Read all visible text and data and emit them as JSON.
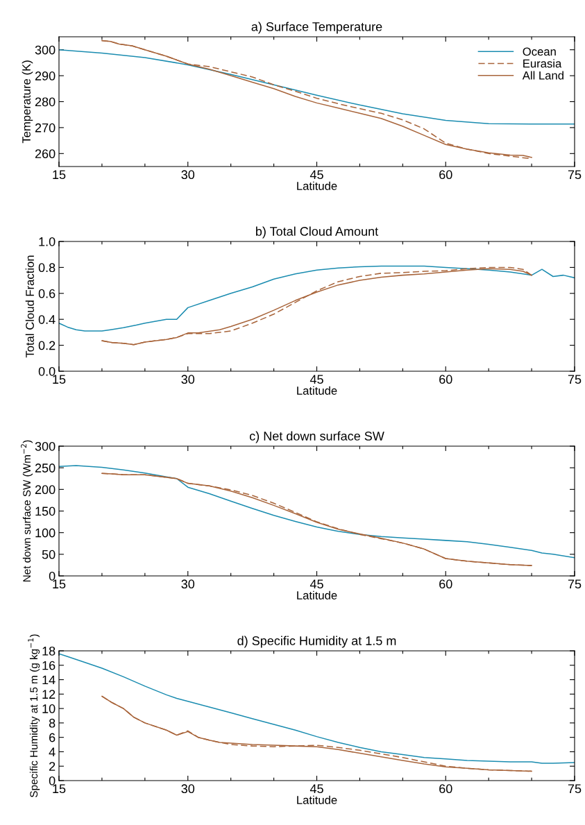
{
  "chart_data": [
    {
      "type": "line",
      "title": "a) Surface Temperature",
      "xlabel": "Latitude",
      "ylabel": "Temperature (K)",
      "xlim": [
        15,
        75
      ],
      "xticks": [
        15,
        {
          "value": 20,
          "label": null
        },
        {
          "value": 25,
          "label": null
        },
        30,
        {
          "value": 35,
          "label": null
        },
        {
          "value": 40,
          "label": null
        },
        45,
        {
          "value": 50,
          "label": null
        },
        {
          "value": 55,
          "label": null
        },
        60,
        {
          "value": 65,
          "label": null
        },
        {
          "value": 70,
          "label": null
        },
        75
      ],
      "ylim": [
        255,
        305
      ],
      "yticks": [
        260,
        270,
        280,
        290,
        300
      ],
      "grid": false,
      "legend": "top right",
      "series": [
        {
          "name": "Ocean",
          "color": "#1a8cb0",
          "line_style": "solid",
          "x": [
            15,
            20,
            25,
            30,
            35,
            40,
            45,
            50,
            55,
            60,
            65,
            70,
            75
          ],
          "values": [
            300,
            298.7,
            297,
            294.2,
            290.5,
            286.5,
            282.5,
            278.7,
            275.3,
            272.8,
            271.5,
            271.4,
            271.4
          ]
        },
        {
          "name": "Eurasia",
          "color": "#a8643a",
          "line_style": "dashed",
          "x": [
            20,
            21,
            22,
            23.5,
            25,
            27.5,
            30,
            32.5,
            35,
            37.5,
            40,
            42.5,
            45,
            47.5,
            50,
            52.5,
            55,
            57.5,
            60,
            62.5,
            65,
            67.5,
            70
          ],
          "values": [
            303.5,
            303.2,
            302.2,
            301.5,
            300,
            297.5,
            294.5,
            293.5,
            291.5,
            289.5,
            286.5,
            284,
            281.3,
            279.2,
            277.3,
            275.5,
            273,
            269.5,
            264,
            261.7,
            260,
            259,
            258
          ]
        },
        {
          "name": "All Land",
          "color": "#a8643a",
          "line_style": "solid",
          "x": [
            20,
            21,
            22,
            23.5,
            25,
            27.5,
            30,
            32.5,
            35,
            37.5,
            40,
            42.5,
            45,
            47.5,
            50,
            52.5,
            55,
            57.5,
            60,
            62.5,
            65,
            67.5,
            69,
            70
          ],
          "values": [
            303.5,
            303.2,
            302.2,
            301.5,
            300,
            297.5,
            294.5,
            292.5,
            290,
            287.5,
            285,
            282,
            279.5,
            277.5,
            275.5,
            273.5,
            270.5,
            267,
            263.5,
            261.7,
            260.3,
            259.4,
            259.3,
            258.5
          ]
        }
      ]
    },
    {
      "type": "line",
      "title": "b) Total Cloud Amount",
      "xlabel": "Latitude",
      "ylabel": "Total Cloud Fraction",
      "xlim": [
        15,
        75
      ],
      "xticks": [
        15,
        {
          "value": 20,
          "label": null
        },
        {
          "value": 25,
          "label": null
        },
        30,
        {
          "value": 35,
          "label": null
        },
        {
          "value": 40,
          "label": null
        },
        45,
        {
          "value": 50,
          "label": null
        },
        {
          "value": 55,
          "label": null
        },
        60,
        {
          "value": 65,
          "label": null
        },
        {
          "value": 70,
          "label": null
        },
        75
      ],
      "ylim": [
        0,
        1
      ],
      "yticks": [
        {
          "value": 0,
          "label": "0.0"
        },
        {
          "value": 0.2,
          "label": "0.2"
        },
        {
          "value": 0.4,
          "label": "0.4"
        },
        {
          "value": 0.6,
          "label": "0.6"
        },
        {
          "value": 0.8,
          "label": "0.8"
        },
        {
          "value": 1,
          "label": "1.0"
        }
      ],
      "grid": false,
      "series": [
        {
          "color": "#1a8cb0",
          "line_style": "solid",
          "x": [
            15,
            16,
            17,
            18,
            20,
            21,
            22.5,
            24,
            25,
            27.5,
            28.7,
            30,
            32.5,
            35,
            37.5,
            40,
            42.5,
            45,
            47.5,
            50,
            52.5,
            55,
            57.5,
            60,
            62.5,
            65,
            67.5,
            70,
            71.2,
            72.5,
            73.7,
            75
          ],
          "values": [
            0.37,
            0.34,
            0.32,
            0.31,
            0.31,
            0.32,
            0.335,
            0.355,
            0.37,
            0.4,
            0.4,
            0.49,
            0.545,
            0.6,
            0.65,
            0.71,
            0.75,
            0.78,
            0.795,
            0.805,
            0.81,
            0.81,
            0.81,
            0.8,
            0.79,
            0.78,
            0.765,
            0.74,
            0.785,
            0.73,
            0.74,
            0.72
          ]
        },
        {
          "color": "#a8643a",
          "line_style": "dashed",
          "x": [
            20,
            21.2,
            22.5,
            23.7,
            25,
            27.5,
            28.7,
            30,
            32.5,
            35,
            37.5,
            40,
            42.5,
            45,
            47.5,
            50,
            52.5,
            55,
            57.5,
            60,
            62.5,
            65,
            67.5,
            69,
            70
          ],
          "values": [
            0.235,
            0.22,
            0.215,
            0.205,
            0.225,
            0.245,
            0.26,
            0.29,
            0.29,
            0.31,
            0.37,
            0.44,
            0.53,
            0.62,
            0.69,
            0.73,
            0.755,
            0.76,
            0.77,
            0.775,
            0.79,
            0.8,
            0.8,
            0.785,
            0.74
          ]
        },
        {
          "color": "#a8643a",
          "line_style": "solid",
          "x": [
            20,
            21.2,
            22.5,
            23.7,
            25,
            27.5,
            28.7,
            30,
            31.2,
            33.7,
            35,
            37.5,
            40,
            42.5,
            45,
            47.5,
            50,
            52.5,
            55,
            57.5,
            60,
            62.5,
            65,
            67.5,
            69,
            70
          ],
          "values": [
            0.235,
            0.22,
            0.215,
            0.205,
            0.225,
            0.245,
            0.26,
            0.295,
            0.295,
            0.32,
            0.345,
            0.4,
            0.47,
            0.545,
            0.61,
            0.665,
            0.7,
            0.725,
            0.74,
            0.75,
            0.765,
            0.78,
            0.79,
            0.785,
            0.77,
            0.74
          ]
        }
      ]
    },
    {
      "type": "line",
      "title": "c) Net down surface SW",
      "xlabel": "Latitude",
      "ylabel": "Net down surface SW (Wm$^{−2}$)",
      "xlim": [
        15,
        75
      ],
      "xticks": [
        15,
        {
          "value": 20,
          "label": null
        },
        {
          "value": 25,
          "label": null
        },
        30,
        {
          "value": 35,
          "label": null
        },
        {
          "value": 40,
          "label": null
        },
        45,
        {
          "value": 50,
          "label": null
        },
        {
          "value": 55,
          "label": null
        },
        60,
        {
          "value": 65,
          "label": null
        },
        {
          "value": 70,
          "label": null
        },
        75
      ],
      "ylim": [
        0,
        300
      ],
      "yticks": [
        0,
        50,
        100,
        150,
        200,
        250,
        300
      ],
      "grid": false,
      "series": [
        {
          "color": "#1a8cb0",
          "line_style": "solid",
          "x": [
            15,
            17,
            20,
            22.5,
            25,
            27.5,
            28.7,
            30,
            32.5,
            35,
            37.5,
            40,
            42.5,
            45,
            47.5,
            50,
            52.5,
            55,
            57.5,
            60,
            62.5,
            65,
            67.5,
            70,
            71.2,
            72.5,
            75
          ],
          "values": [
            253,
            255,
            251,
            245,
            238,
            229,
            225,
            205,
            190,
            173,
            156,
            140,
            126,
            113,
            103,
            96,
            91,
            88,
            85,
            82,
            79,
            73,
            66,
            59,
            53,
            50,
            42
          ]
        },
        {
          "color": "#a8643a",
          "line_style": "dashed",
          "x": [
            20,
            21.2,
            22.5,
            25,
            27.5,
            28.7,
            30,
            32.5,
            35,
            37.5,
            40,
            42.5,
            45,
            47.5,
            50,
            52.5,
            55,
            57.5,
            60,
            62.5,
            65,
            67.5,
            70
          ],
          "values": [
            237,
            236,
            234,
            234,
            228,
            225,
            214,
            208,
            199,
            186,
            168,
            147,
            125,
            109,
            96,
            86,
            76,
            62,
            40,
            34,
            30,
            26,
            24
          ]
        },
        {
          "color": "#a8643a",
          "line_style": "solid",
          "x": [
            20,
            21.2,
            22.5,
            25,
            27.5,
            28.7,
            30,
            32.5,
            35,
            37.5,
            40,
            42.5,
            45,
            47.5,
            50,
            52.5,
            55,
            57.5,
            60,
            62.5,
            65,
            67.5,
            70
          ],
          "values": [
            237,
            236,
            234,
            234,
            228,
            225,
            214,
            208,
            196,
            181,
            163,
            144,
            124,
            108,
            97,
            87,
            76,
            62,
            40,
            34,
            30,
            26,
            24
          ]
        }
      ]
    },
    {
      "type": "line",
      "title": "d) Specific Humidity at 1.5 m",
      "xlabel": "Latitude",
      "ylabel": "Specific Humidity at 1.5 m (g kg$^{−1}$)",
      "xlim": [
        15,
        75
      ],
      "xticks": [
        15,
        {
          "value": 20,
          "label": null
        },
        {
          "value": 25,
          "label": null
        },
        30,
        {
          "value": 35,
          "label": null
        },
        {
          "value": 40,
          "label": null
        },
        45,
        {
          "value": 50,
          "label": null
        },
        {
          "value": 55,
          "label": null
        },
        60,
        {
          "value": 65,
          "label": null
        },
        {
          "value": 70,
          "label": null
        },
        75
      ],
      "ylim": [
        0,
        18
      ],
      "yticks": [
        0,
        2,
        4,
        6,
        8,
        10,
        12,
        14,
        16,
        18
      ],
      "grid": false,
      "series": [
        {
          "color": "#1a8cb0",
          "line_style": "solid",
          "x": [
            15,
            16,
            17.5,
            20,
            22.5,
            25,
            27.5,
            28.7,
            30,
            32.5,
            35,
            37.5,
            40,
            42.5,
            45,
            47.5,
            50,
            52.5,
            55,
            57.5,
            60,
            62.5,
            65,
            67.5,
            70,
            71.2,
            72.5,
            75
          ],
          "values": [
            17.6,
            17.2,
            16.6,
            15.6,
            14.4,
            13.1,
            11.9,
            11.4,
            11,
            10.2,
            9.4,
            8.6,
            7.8,
            7,
            6.1,
            5.3,
            4.6,
            4,
            3.6,
            3.2,
            3,
            2.8,
            2.7,
            2.6,
            2.6,
            2.4,
            2.4,
            2.5
          ]
        },
        {
          "color": "#a8643a",
          "line_style": "dashed",
          "x": [
            20,
            21.2,
            22.5,
            23.7,
            25,
            27.5,
            28.7,
            30,
            31.2,
            32.5,
            33.7,
            35,
            37.5,
            40,
            42.5,
            45,
            47.5,
            50,
            52.5,
            55,
            57.5,
            60,
            62.5,
            65,
            67.5,
            70
          ],
          "values": [
            11.7,
            10.8,
            10,
            8.8,
            8,
            7,
            6.3,
            6.9,
            6,
            5.6,
            5.3,
            5,
            4.8,
            4.7,
            4.8,
            4.9,
            4.6,
            4.2,
            3.7,
            3.2,
            2.6,
            2,
            1.7,
            1.5,
            1.4,
            1.3
          ]
        },
        {
          "color": "#a8643a",
          "line_style": "solid",
          "x": [
            20,
            21.2,
            22.5,
            23.7,
            25,
            27.5,
            28.7,
            30,
            31.2,
            32.5,
            33.7,
            35,
            37.5,
            40,
            42.5,
            45,
            47.5,
            50,
            52.5,
            55,
            57.5,
            60,
            62.5,
            65,
            67.5,
            70
          ],
          "values": [
            11.7,
            10.8,
            10,
            8.8,
            8,
            7,
            6.3,
            6.8,
            6,
            5.6,
            5.3,
            5.2,
            5,
            4.9,
            4.8,
            4.7,
            4.3,
            3.8,
            3.3,
            2.8,
            2.3,
            1.9,
            1.7,
            1.5,
            1.4,
            1.3
          ]
        }
      ]
    }
  ]
}
